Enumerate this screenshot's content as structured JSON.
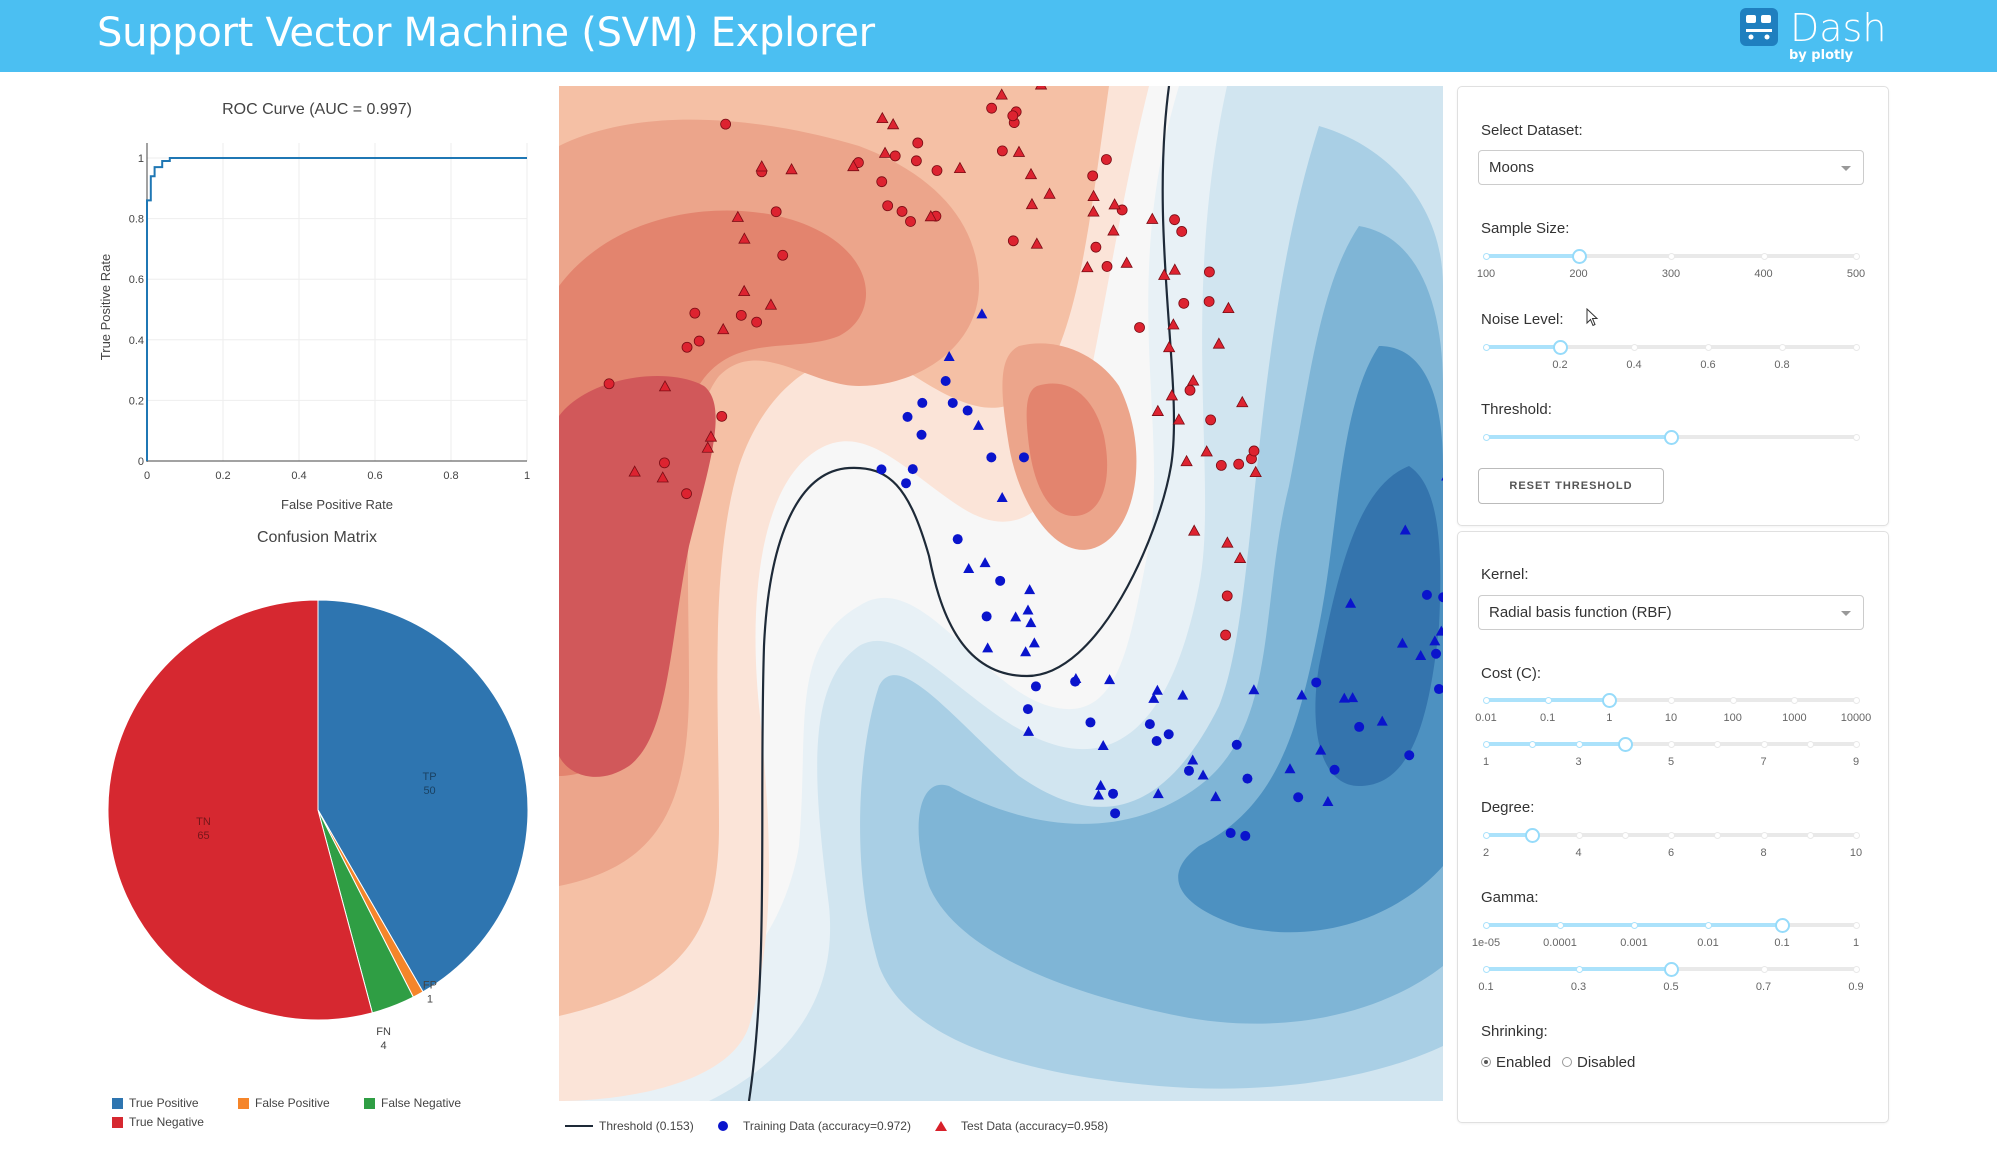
{
  "app": {
    "title": "Support Vector Machine (SVM) Explorer",
    "logo_text": "Dash",
    "logo_sub": "by plotly",
    "banner_color": "#4bbff2"
  },
  "roc": {
    "title": "ROC Curve (AUC = 0.997)",
    "xlabel": "False Positive Rate",
    "ylabel": "True Positive Rate",
    "xticks": [
      "0",
      "0.2",
      "0.4",
      "0.6",
      "0.8",
      "1"
    ],
    "yticks": [
      "0",
      "0.2",
      "0.4",
      "0.6",
      "0.8",
      "1"
    ]
  },
  "confusion": {
    "title": "Confusion Matrix",
    "slices": [
      {
        "name": "TP",
        "value": 50,
        "color": "#2e75b0",
        "legend": "True Positive"
      },
      {
        "name": "FP",
        "value": 1,
        "color": "#f5852a",
        "legend": "False Positive"
      },
      {
        "name": "FN",
        "value": 4,
        "color": "#2f9e44",
        "legend": "False Negative"
      },
      {
        "name": "TN",
        "value": 65,
        "color": "#d62830",
        "legend": "True Negative"
      }
    ]
  },
  "main_plot": {
    "legend": {
      "threshold": "Threshold (0.153)",
      "training": "Training Data (accuracy=0.972)",
      "test": "Test Data (accuracy=0.958)"
    }
  },
  "chart_data": [
    {
      "type": "line",
      "title": "ROC Curve (AUC = 0.997)",
      "xlabel": "False Positive Rate",
      "ylabel": "True Positive Rate",
      "xlim": [
        0,
        1
      ],
      "ylim": [
        0,
        1
      ],
      "series": [
        {
          "x": [
            0,
            0,
            0.01,
            0.01,
            0.02,
            0.02,
            0.04,
            0.04,
            0.06,
            0.06,
            1
          ],
          "y": [
            0,
            0.86,
            0.86,
            0.94,
            0.94,
            0.97,
            0.97,
            0.99,
            0.99,
            1,
            1
          ]
        }
      ]
    },
    {
      "type": "pie",
      "title": "Confusion Matrix",
      "categories": [
        "TP",
        "FP",
        "FN",
        "TN"
      ],
      "values": [
        50,
        1,
        4,
        65
      ],
      "legend": [
        "True Positive",
        "False Positive",
        "False Negative",
        "True Negative"
      ]
    },
    {
      "type": "scatter",
      "series": [
        {
          "name": "Threshold (0.153)",
          "mode": "contour-line"
        },
        {
          "name": "Training Data (accuracy=0.972)",
          "marker": "circle"
        },
        {
          "name": "Test Data (accuracy=0.958)",
          "marker": "triangle"
        }
      ],
      "colorscale": [
        "#d1585a",
        "#f7f7f7",
        "#2166ac"
      ]
    }
  ],
  "controls": {
    "dataset": {
      "label": "Select Dataset:",
      "value": "Moons"
    },
    "sample_size": {
      "label": "Sample Size:",
      "marks": [
        "100",
        "200",
        "300",
        "400",
        "500"
      ],
      "value": 200
    },
    "noise": {
      "label": "Noise Level:",
      "marks": [
        "0.2",
        "0.4",
        "0.6",
        "0.8"
      ],
      "value": 0.2
    },
    "threshold": {
      "label": "Threshold:",
      "value": 0.5
    },
    "reset_button": "RESET THRESHOLD",
    "kernel": {
      "label": "Kernel:",
      "value": "Radial basis function (RBF)"
    },
    "cost": {
      "label": "Cost (C):",
      "marks": [
        "0.01",
        "0.1",
        "1",
        "10",
        "100",
        "1000",
        "10000"
      ],
      "value": "1"
    },
    "cost_coef": {
      "marks": [
        "1",
        "3",
        "5",
        "7",
        "9"
      ],
      "value": 4
    },
    "degree": {
      "label": "Degree:",
      "marks": [
        "2",
        "4",
        "6",
        "8",
        "10"
      ],
      "value": 3
    },
    "gamma": {
      "label": "Gamma:",
      "marks": [
        "1e-05",
        "0.0001",
        "0.001",
        "0.01",
        "0.1",
        "1"
      ],
      "value": "0.1"
    },
    "gamma_coef": {
      "marks": [
        "0.1",
        "0.3",
        "0.5",
        "0.7",
        "0.9"
      ],
      "value": 0.5
    },
    "shrinking": {
      "label": "Shrinking:",
      "options": [
        "Enabled",
        "Disabled"
      ],
      "selected": "Enabled"
    }
  }
}
